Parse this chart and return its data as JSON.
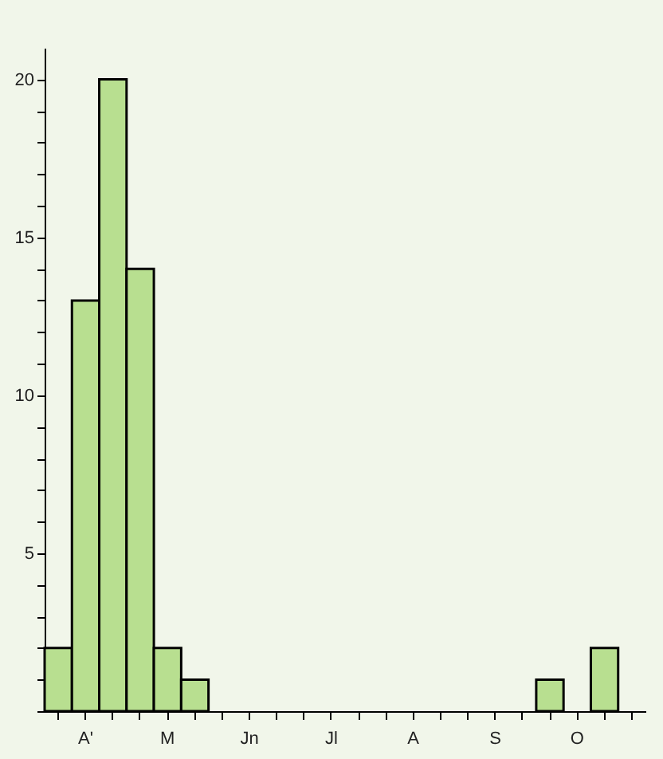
{
  "chart_data": {
    "type": "bar",
    "categories": [
      null,
      "A'",
      null,
      null,
      "M",
      null,
      null,
      "Jn",
      null,
      null,
      "Jl",
      null,
      null,
      "A",
      null,
      null,
      "S",
      null,
      null,
      "O",
      null,
      null
    ],
    "values": [
      2,
      13,
      20,
      14,
      2,
      1,
      0,
      0,
      0,
      0,
      0,
      0,
      0,
      0,
      0,
      0,
      0,
      0,
      1,
      0,
      2,
      0
    ],
    "color": "#b8df90",
    "ylim": [
      0,
      21
    ],
    "yticks": [
      {
        "value": 0,
        "label": null
      },
      {
        "value": 1,
        "label": null
      },
      {
        "value": 2,
        "label": null
      },
      {
        "value": 3,
        "label": null
      },
      {
        "value": 4,
        "label": null
      },
      5,
      {
        "value": 6,
        "label": null
      },
      {
        "value": 7,
        "label": null
      },
      {
        "value": 8,
        "label": null
      },
      {
        "value": 9,
        "label": null
      },
      10,
      {
        "value": 11,
        "label": null
      },
      {
        "value": 12,
        "label": null
      },
      {
        "value": 13,
        "label": null
      },
      {
        "value": 14,
        "label": null
      },
      15,
      {
        "value": 16,
        "label": null
      },
      {
        "value": 17,
        "label": null
      },
      {
        "value": 18,
        "label": null
      },
      {
        "value": 19,
        "label": null
      },
      20
    ],
    "grid": false
  }
}
